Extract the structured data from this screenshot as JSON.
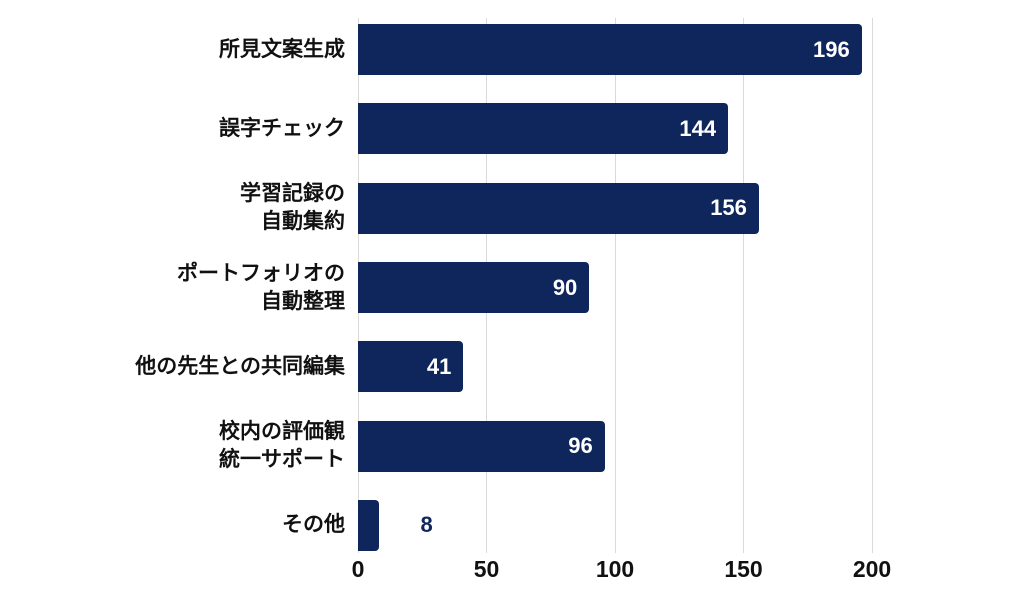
{
  "figure": {
    "background_color": "#ffffff",
    "title": ""
  },
  "chart_data": {
    "type": "bar",
    "orientation": "horizontal",
    "title": "",
    "xlabel": "",
    "ylabel": "",
    "xlim": [
      0,
      200
    ],
    "xticks": [
      0,
      50,
      100,
      150,
      200
    ],
    "grid": "vertical",
    "legend": "none",
    "categories": [
      "所見文案生成",
      "誤字チェック",
      "学習記録の自動集約",
      "ポートフォリオの自動整理",
      "他の先生との共同編集",
      "校内の評価観統一サポート",
      "その他"
    ],
    "values": [
      196,
      144,
      156,
      90,
      41,
      96,
      8
    ],
    "rows": [
      {
        "label_lines": [
          "所見文案生成"
        ],
        "value": 196
      },
      {
        "label_lines": [
          "誤字チェック"
        ],
        "value": 144
      },
      {
        "label_lines": [
          "学習記録の",
          "自動集約"
        ],
        "value": 156
      },
      {
        "label_lines": [
          "ポートフォリオの",
          "自動整理"
        ],
        "value": 90
      },
      {
        "label_lines": [
          "他の先生との共同編集"
        ],
        "value": 41
      },
      {
        "label_lines": [
          "校内の評価観",
          "統一サポート"
        ],
        "value": 96
      },
      {
        "label_lines": [
          "その他"
        ],
        "value": 8
      }
    ],
    "colors": {
      "bar": "#0f265c",
      "value_label_inside": "#ffffff",
      "value_label_outside": "#0f265c",
      "gridline": "#d9d9d9",
      "axis_tick_label": "#111111",
      "category_label": "#111111"
    }
  }
}
